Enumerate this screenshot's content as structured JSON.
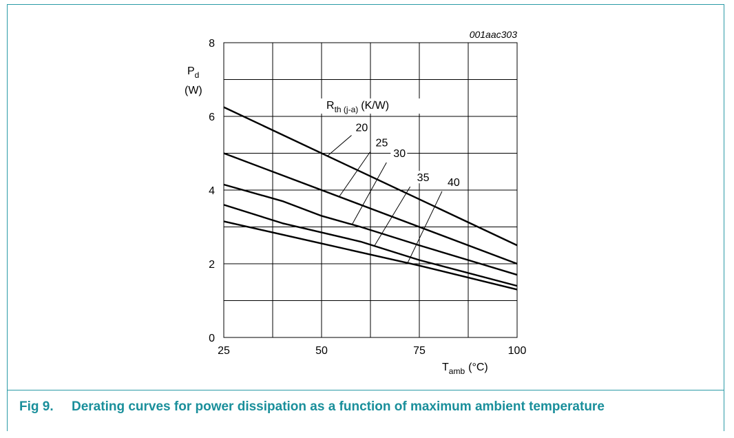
{
  "figure_id": "001aac303",
  "caption": {
    "number": "Fig 9.",
    "text": "Derating curves for power dissipation as a function of maximum ambient temperature"
  },
  "colors": {
    "accent": "#2a9aa6",
    "caption": "#1a8f9b",
    "line": "#000000",
    "grid": "#000000"
  },
  "chart_data": {
    "type": "line",
    "title": "",
    "ylabel_main": "P",
    "ylabel_sub": "d",
    "ylabel_unit": "(W)",
    "xlabel_main": "T",
    "xlabel_sub": "amb",
    "xlabel_unit": "(°C)",
    "legend_title_main": "R",
    "legend_title_sub": "th (j-a)",
    "legend_title_unit": "(K/W)",
    "xlim": [
      25,
      100
    ],
    "ylim": [
      0,
      8
    ],
    "xticks": [
      25,
      50,
      75,
      100
    ],
    "yticks": [
      0,
      2,
      4,
      6,
      8
    ],
    "x_minor_grid": [
      37.5,
      62.5,
      87.5
    ],
    "y_minor_grid": [
      1,
      3,
      5,
      7
    ],
    "grid": true,
    "series": [
      {
        "name": "20",
        "x": [
          25,
          100
        ],
        "y": [
          6.25,
          2.5
        ]
      },
      {
        "name": "25",
        "x": [
          25,
          100
        ],
        "y": [
          5.0,
          2.0
        ]
      },
      {
        "name": "30",
        "x": [
          25,
          40,
          50,
          60,
          75,
          100
        ],
        "y": [
          4.15,
          3.7,
          3.3,
          3.0,
          2.5,
          1.7
        ]
      },
      {
        "name": "35",
        "x": [
          25,
          40,
          60,
          75,
          100
        ],
        "y": [
          3.6,
          3.1,
          2.6,
          2.1,
          1.4
        ]
      },
      {
        "name": "40",
        "x": [
          25,
          50,
          75,
          100
        ],
        "y": [
          3.15,
          2.55,
          1.95,
          1.3
        ]
      }
    ]
  }
}
